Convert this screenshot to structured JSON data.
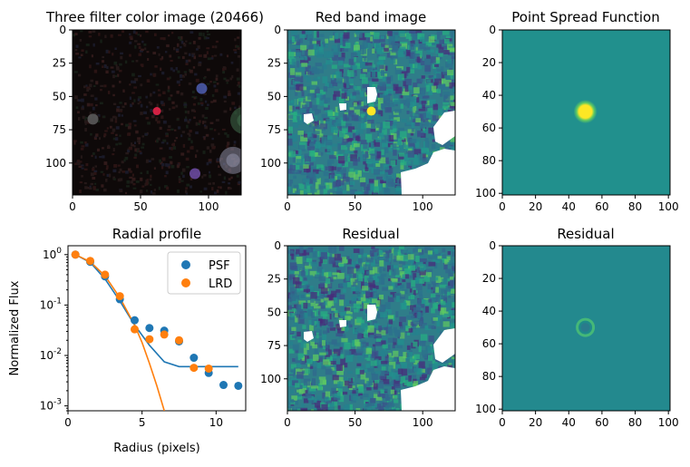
{
  "figure": {
    "titles": {
      "color": "Three filter color image (20466)",
      "red": "Red band image",
      "psf": "Point Spread Function",
      "profile": "Radial profile",
      "resid1": "Residual",
      "resid2": "Residual"
    }
  },
  "colors": {
    "viridis_dark": "#440154",
    "viridis_teal": "#21908d",
    "viridis_yellow": "#fde725",
    "psf_series": "#1f77b4",
    "lrd_series": "#ff7f0e"
  },
  "chart_data": [
    {
      "id": "color",
      "type": "heatmap",
      "title": "Three filter color image (20466)",
      "xlim": [
        0,
        124
      ],
      "ylim": [
        124,
        0
      ],
      "xticks": [
        0,
        50,
        100
      ],
      "yticks": [
        0,
        25,
        50,
        75,
        100
      ],
      "xticklabels": [
        "0",
        "50",
        "100"
      ],
      "yticklabels": [
        "0",
        "25",
        "50",
        "75",
        "100"
      ],
      "sources": [
        {
          "x": 62,
          "y": 61,
          "r": 3,
          "color": "#e8254a"
        },
        {
          "x": 95,
          "y": 44,
          "r": 4,
          "color": "#4a5aa8"
        },
        {
          "x": 15,
          "y": 67,
          "r": 4,
          "color": "#5a5a5a"
        },
        {
          "x": 90,
          "y": 108,
          "r": 4,
          "color": "#6a4aa0"
        },
        {
          "x": 126,
          "y": 68,
          "r": 10,
          "color": "#3f6a4a"
        },
        {
          "x": 118,
          "y": 98,
          "r": 10,
          "color": "#8a8aa0"
        }
      ]
    },
    {
      "id": "red",
      "type": "heatmap",
      "title": "Red band image",
      "xlim": [
        0,
        124
      ],
      "ylim": [
        124,
        0
      ],
      "xticks": [
        0,
        50,
        100
      ],
      "yticks": [
        0,
        25,
        50,
        75,
        100
      ],
      "xticklabels": [
        "0",
        "50",
        "100"
      ],
      "yticklabels": [
        "0",
        "25",
        "50",
        "75",
        "100"
      ],
      "source": {
        "x": 62,
        "y": 61,
        "r": 4
      }
    },
    {
      "id": "psf",
      "type": "heatmap",
      "title": "Point Spread Function",
      "xlim": [
        0,
        101
      ],
      "ylim": [
        101,
        0
      ],
      "xticks": [
        0,
        20,
        40,
        60,
        80,
        100
      ],
      "yticks": [
        0,
        20,
        40,
        60,
        80,
        100
      ],
      "xticklabels": [
        "0",
        "20",
        "40",
        "60",
        "80",
        "100"
      ],
      "yticklabels": [
        "0",
        "20",
        "40",
        "60",
        "80",
        "100"
      ],
      "source": {
        "x": 50,
        "y": 50
      }
    },
    {
      "id": "profile",
      "type": "scatter",
      "title": "Radial profile",
      "xlabel": "Radius (pixels)",
      "ylabel": "Normalized Flux",
      "xlim": [
        0,
        12
      ],
      "ylim": [
        0.0008,
        1.5
      ],
      "yscale": "log",
      "xticks": [
        0,
        5,
        10
      ],
      "xticklabels": [
        "0",
        "5",
        "10"
      ],
      "yticks": [
        0.001,
        0.01,
        0.1,
        1
      ],
      "legend": "top-right",
      "series": [
        {
          "name": "PSF",
          "points_x": [
            0.5,
            1.5,
            2.5,
            3.5,
            4.5,
            5.5,
            6.5,
            7.5,
            8.5,
            9.5,
            10.5,
            11.5
          ],
          "points_y": [
            1.0,
            0.72,
            0.37,
            0.13,
            0.05,
            0.035,
            0.031,
            0.019,
            0.009,
            0.0045,
            0.0026,
            0.0025
          ],
          "line_x": [
            0.5,
            1.5,
            2.5,
            3.5,
            4.5,
            5.5,
            6.5,
            7.5,
            8.5,
            9.5,
            10.5,
            11.5
          ],
          "line_y": [
            1.0,
            0.7,
            0.33,
            0.12,
            0.04,
            0.016,
            0.0075,
            0.006,
            0.006,
            0.006,
            0.006,
            0.006
          ]
        },
        {
          "name": "LRD",
          "points_x": [
            0.5,
            1.5,
            2.5,
            3.5,
            4.5,
            5.5,
            6.5,
            7.5,
            8.5,
            9.5
          ],
          "points_y": [
            1.0,
            0.75,
            0.4,
            0.15,
            0.033,
            0.021,
            0.026,
            0.02,
            0.0057,
            0.0055
          ],
          "line_x": [
            0.5,
            1.5,
            2.5,
            3.5,
            4.5,
            5.0,
            5.5,
            6.0,
            6.5
          ],
          "line_y": [
            1.0,
            0.72,
            0.38,
            0.14,
            0.04,
            0.018,
            0.007,
            0.0025,
            0.0008
          ]
        }
      ]
    },
    {
      "id": "resid1",
      "type": "heatmap",
      "title": "Residual",
      "xlim": [
        0,
        124
      ],
      "ylim": [
        124,
        0
      ],
      "xticks": [
        0,
        50,
        100
      ],
      "yticks": [
        0,
        25,
        50,
        75,
        100
      ],
      "xticklabels": [
        "0",
        "50",
        "100"
      ],
      "yticklabels": [
        "0",
        "25",
        "50",
        "75",
        "100"
      ]
    },
    {
      "id": "resid2",
      "type": "heatmap",
      "title": "Residual",
      "xlim": [
        0,
        101
      ],
      "ylim": [
        101,
        0
      ],
      "xticks": [
        0,
        20,
        40,
        60,
        80,
        100
      ],
      "yticks": [
        0,
        20,
        40,
        60,
        80,
        100
      ],
      "xticklabels": [
        "0",
        "20",
        "40",
        "60",
        "80",
        "100"
      ],
      "yticklabels": [
        "0",
        "20",
        "40",
        "60",
        "80",
        "100"
      ],
      "source": {
        "x": 50,
        "y": 50
      }
    }
  ]
}
